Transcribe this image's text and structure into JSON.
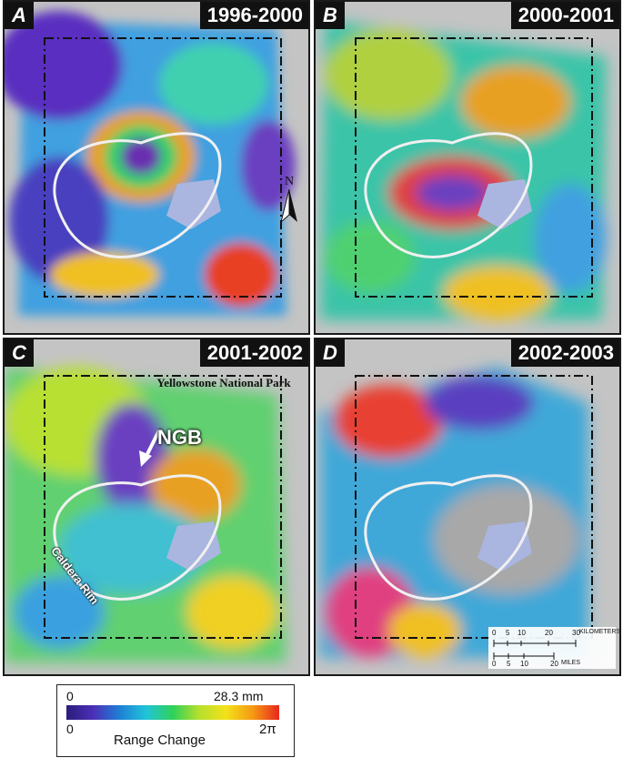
{
  "panels": [
    {
      "letter": "A",
      "period": "1996-2000"
    },
    {
      "letter": "B",
      "period": "2000-2001"
    },
    {
      "letter": "C",
      "period": "2001-2002"
    },
    {
      "letter": "D",
      "period": "2002-2003"
    }
  ],
  "annotations": {
    "park_name": "Yellowstone National Park",
    "ngb": "NGB",
    "caldera_rim": "Caldera Rim",
    "north": "N"
  },
  "scale": {
    "km_ticks": [
      "0",
      "5",
      "10",
      "20",
      "30"
    ],
    "km_unit": "KILOMETERS",
    "mi_ticks": [
      "0",
      "5",
      "10",
      "20"
    ],
    "mi_unit": "MILES"
  },
  "legend": {
    "top_min": "0",
    "top_max": "28.3 mm",
    "bottom_min": "0",
    "bottom_max": "2π",
    "title": "Range Change",
    "colors": [
      "#2b1c7a",
      "#4b2fb8",
      "#1f7fd6",
      "#20c4d9",
      "#2fd15a",
      "#b7e02c",
      "#f4e11a",
      "#f59a12",
      "#e8271c"
    ]
  }
}
